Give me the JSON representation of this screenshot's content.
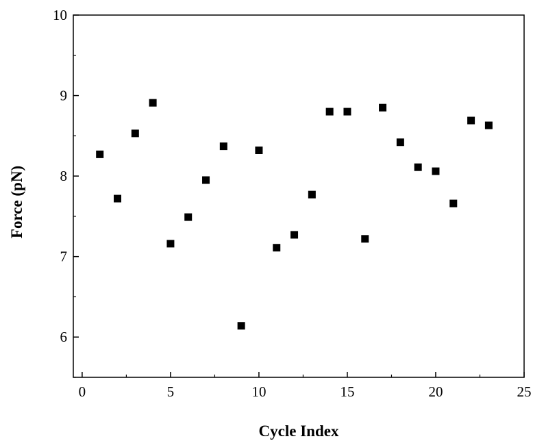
{
  "chart_data": {
    "type": "scatter",
    "title": "",
    "xlabel": "Cycle Index",
    "ylabel": "Force (pN)",
    "xlim": [
      -0.5,
      25
    ],
    "ylim": [
      5.5,
      10
    ],
    "x_ticks": [
      0,
      5,
      10,
      15,
      20,
      25
    ],
    "y_ticks": [
      6,
      7,
      8,
      9,
      10
    ],
    "grid": false,
    "marker": "square",
    "marker_color": "#000000",
    "series": [
      {
        "x": [
          1,
          2,
          3,
          4,
          5,
          6,
          7,
          8,
          9,
          10,
          11,
          12,
          13,
          14,
          15,
          16,
          17,
          18,
          19,
          20,
          21,
          22,
          23
        ],
        "y": [
          8.27,
          7.72,
          8.53,
          8.91,
          7.16,
          7.49,
          7.95,
          8.37,
          6.14,
          8.32,
          7.11,
          7.27,
          7.77,
          8.8,
          8.8,
          7.22,
          8.85,
          8.42,
          8.11,
          8.06,
          7.66,
          8.69,
          8.63
        ]
      }
    ]
  }
}
